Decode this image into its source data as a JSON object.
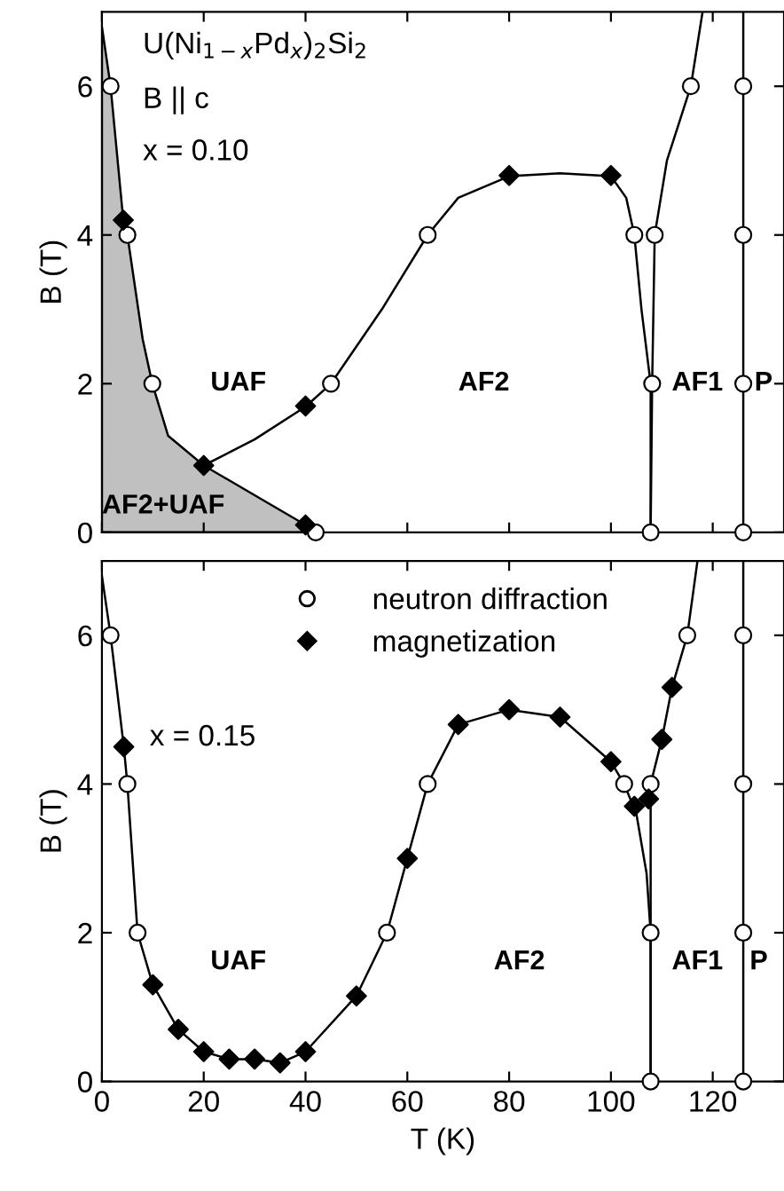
{
  "chart_data": [
    {
      "type": "scatter",
      "ylabel": "B (T)",
      "xlim": [
        0,
        134
      ],
      "ylim": [
        0,
        7
      ],
      "xticks": [
        0,
        20,
        40,
        60,
        80,
        100,
        120
      ],
      "yticks": [
        0,
        2,
        4,
        6
      ],
      "tick_labels": "y",
      "grid": false,
      "annotations": [
        "U(Ni$_{1−x}$Pd$_{x}$)$_{2}$Si$_{2}$",
        "B || c",
        "x = 0.10",
        "UAF",
        "AF2",
        "AF1",
        "P",
        "AF2+UAF"
      ],
      "ref_lines": [
        {
          "axis": "x",
          "value": 126,
          "color": "#000000"
        }
      ],
      "series": [
        {
          "type": "area",
          "color": "#c0c0c0",
          "x": [
            0,
            1.7,
            4.2,
            5,
            8,
            9.9,
            13,
            20,
            30,
            40,
            42
          ],
          "values": [
            6.8,
            6,
            4.2,
            4,
            2.6,
            2,
            1.3,
            0.9,
            0.5,
            0.1,
            0
          ]
        },
        {
          "type": "line",
          "color": "#000000",
          "x": [
            20,
            30,
            40,
            45,
            55,
            64,
            70,
            80,
            90,
            100,
            103,
            104.6,
            106,
            107.8,
            107.8
          ],
          "values": [
            0.9,
            1.25,
            1.69,
            2,
            3,
            4,
            4.5,
            4.79,
            4.83,
            4.79,
            4.5,
            4,
            3,
            2,
            0
          ]
        },
        {
          "type": "line",
          "color": "#000000",
          "x": [
            107.8,
            108.1,
            108.6,
            111,
            115.7,
            118
          ],
          "values": [
            0,
            2,
            4,
            5,
            6,
            7
          ]
        },
        {
          "marker": "circle",
          "color": "#ffffff",
          "x": [
            1.7,
            5,
            9.9,
            42,
            45,
            64,
            104.6,
            108.6,
            108.1,
            107.8,
            115.7,
            126,
            126,
            126,
            126
          ],
          "values": [
            6,
            4,
            2,
            0,
            2,
            4,
            4,
            4,
            2,
            0,
            6,
            6,
            4,
            2,
            0
          ]
        },
        {
          "marker": "diamond",
          "color": "#000000",
          "x": [
            4.2,
            20,
            40,
            40,
            80,
            100
          ],
          "values": [
            4.2,
            0.9,
            1.7,
            0.1,
            4.8,
            4.8
          ]
        }
      ]
    },
    {
      "type": "scatter",
      "xlabel": "T (K)",
      "ylabel": "B (T)",
      "xlim": [
        0,
        134
      ],
      "ylim": [
        0,
        7
      ],
      "xticks": [
        0,
        20,
        40,
        60,
        80,
        100,
        120
      ],
      "yticks": [
        0,
        2,
        4,
        6
      ],
      "grid": false,
      "legend": "top",
      "annotations": [
        "x = 0.15",
        "UAF",
        "AF2",
        "AF1",
        "P"
      ],
      "ref_lines": [
        {
          "axis": "x",
          "value": 126,
          "color": "#000000"
        }
      ],
      "series": [
        {
          "type": "line",
          "color": "#000000",
          "x": [
            0,
            1.7,
            4.3,
            5,
            7,
            10,
            15,
            20,
            25,
            30,
            35,
            40,
            50,
            56,
            60,
            64,
            70,
            80,
            90,
            100,
            102.6,
            105,
            107,
            107.8,
            107.8
          ],
          "values": [
            6.8,
            6,
            4.5,
            4,
            2,
            1.3,
            0.7,
            0.4,
            0.3,
            0.3,
            0.25,
            0.4,
            1.15,
            2,
            3,
            4,
            4.8,
            5,
            4.9,
            4.3,
            4,
            3.6,
            2.8,
            2,
            0
          ]
        },
        {
          "type": "line",
          "color": "#000000",
          "x": [
            107.8,
            107.8,
            110,
            112,
            115,
            117
          ],
          "values": [
            0,
            4,
            4.6,
            5.3,
            6,
            7
          ]
        },
        {
          "name": "neutron diffraction",
          "marker": "circle",
          "color": "#ffffff",
          "x": [
            1.7,
            5,
            7,
            56,
            64,
            102.6,
            107.8,
            107.8,
            107.8,
            115,
            126,
            126,
            126,
            126
          ],
          "values": [
            6,
            4,
            2,
            2,
            4,
            4,
            4,
            2,
            0,
            6,
            6,
            4,
            2,
            0
          ]
        },
        {
          "name": "magnetization",
          "marker": "diamond",
          "color": "#000000",
          "x": [
            4.3,
            10,
            15,
            20,
            25,
            30,
            35,
            40,
            50,
            60,
            70,
            80,
            90,
            100,
            104.6,
            107.4,
            110,
            112
          ],
          "values": [
            4.5,
            1.3,
            0.7,
            0.4,
            0.3,
            0.3,
            0.25,
            0.4,
            1.15,
            3,
            4.8,
            5,
            4.9,
            4.3,
            3.7,
            3.8,
            4.6,
            5.3
          ]
        }
      ]
    }
  ]
}
